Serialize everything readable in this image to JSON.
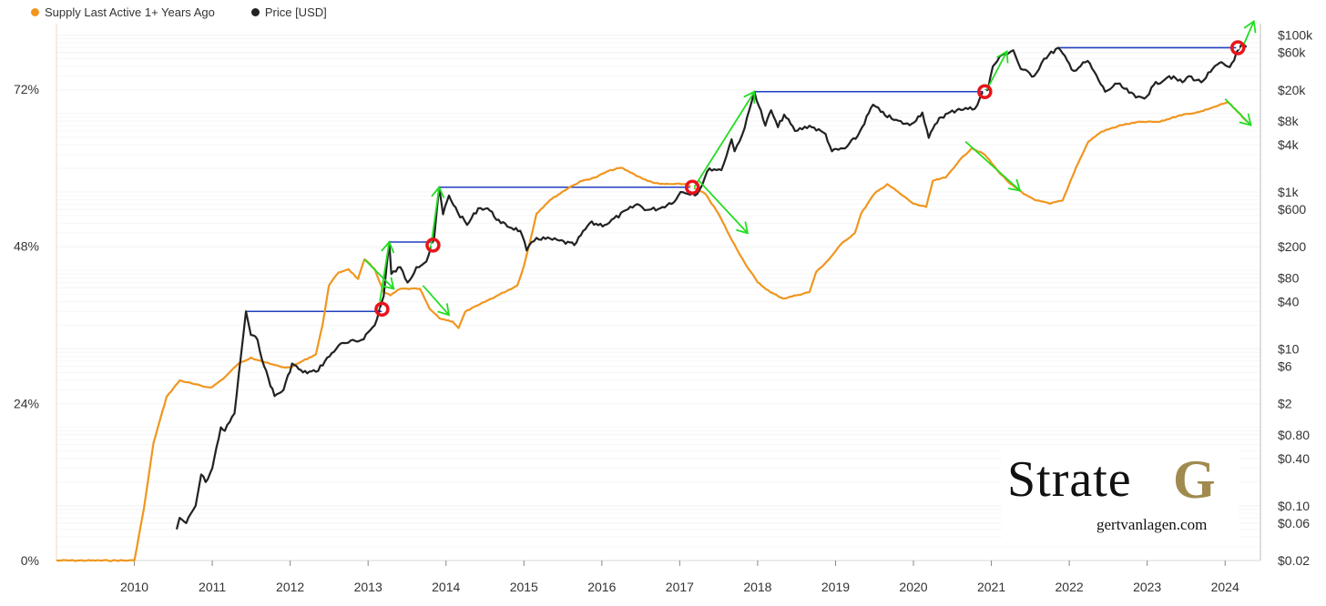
{
  "legend": {
    "supply_label": "Supply Last Active 1+ Years Ago",
    "price_label": "Price [USD]"
  },
  "watermark": {
    "brand_text": "Strate",
    "brand_mark": "G",
    "url": "gertvanlagen.com"
  },
  "colors": {
    "supply": "#f0961f",
    "price": "#222222",
    "ath_line": "#1f3fbf",
    "arrow": "#22dd22",
    "marker": "#e8141b",
    "grid": "#eeeeee",
    "axis_text": "#333333"
  },
  "chart_data": {
    "type": "line",
    "x_axis": {
      "type": "time",
      "range": [
        "2009-01-01",
        "2024-06-15"
      ],
      "tick_labels": [
        "2010",
        "2011",
        "2012",
        "2013",
        "2014",
        "2015",
        "2016",
        "2017",
        "2018",
        "2019",
        "2020",
        "2021",
        "2022",
        "2023",
        "2024"
      ]
    },
    "y_left": {
      "label": "",
      "range": [
        0,
        82
      ],
      "unit": "%",
      "tick_values": [
        0,
        24,
        48,
        72
      ],
      "tick_labels": [
        "0%",
        "24%",
        "48%",
        "72%"
      ]
    },
    "y_right": {
      "label": "",
      "scale": "log",
      "range": [
        0.02,
        140000
      ],
      "tick_values": [
        100000,
        60000,
        20000,
        8000,
        4000,
        1000,
        600,
        200,
        80,
        40,
        10,
        6,
        2,
        0.8,
        0.4,
        0.1,
        0.06,
        0.02
      ],
      "tick_labels": [
        "$100k",
        "$60k",
        "$20k",
        "$8k",
        "$4k",
        "$1k",
        "$600",
        "$200",
        "$80",
        "$40",
        "$10",
        "$6",
        "$2",
        "$0.80",
        "$0.40",
        "$0.10",
        "$0.06",
        "$0.02"
      ]
    },
    "grid": true,
    "legend_position": "top-left",
    "series": [
      {
        "name": "Supply Last Active 1+ Years Ago",
        "axis": "left",
        "points": [
          [
            "2009-01-01",
            0
          ],
          [
            "2010-01-01",
            0
          ],
          [
            "2010-02-15",
            8
          ],
          [
            "2010-04-01",
            18
          ],
          [
            "2010-06-01",
            25
          ],
          [
            "2010-08-01",
            27.5
          ],
          [
            "2010-10-01",
            27
          ],
          [
            "2010-12-01",
            26.5
          ],
          [
            "2011-01-01",
            26.5
          ],
          [
            "2011-03-01",
            28
          ],
          [
            "2011-05-01",
            30
          ],
          [
            "2011-07-01",
            31
          ],
          [
            "2011-08-15",
            30.5
          ],
          [
            "2011-10-01",
            30
          ],
          [
            "2011-12-01",
            29.5
          ],
          [
            "2012-01-01",
            29.5
          ],
          [
            "2012-03-01",
            30.5
          ],
          [
            "2012-05-01",
            31.5
          ],
          [
            "2012-06-01",
            36
          ],
          [
            "2012-07-01",
            42
          ],
          [
            "2012-08-15",
            44
          ],
          [
            "2012-10-01",
            44.5
          ],
          [
            "2012-11-15",
            43
          ],
          [
            "2012-12-15",
            46
          ],
          [
            "2013-02-01",
            44.5
          ],
          [
            "2013-03-15",
            41
          ],
          [
            "2013-04-15",
            40.5
          ],
          [
            "2013-06-01",
            41.5
          ],
          [
            "2013-09-01",
            41.5
          ],
          [
            "2013-10-15",
            38.5
          ],
          [
            "2013-12-01",
            37
          ],
          [
            "2014-02-01",
            36.5
          ],
          [
            "2014-03-01",
            35.5
          ],
          [
            "2014-04-01",
            38
          ],
          [
            "2014-06-01",
            39
          ],
          [
            "2014-09-01",
            40.5
          ],
          [
            "2014-12-01",
            42
          ],
          [
            "2015-01-01",
            45
          ],
          [
            "2015-02-01",
            49
          ],
          [
            "2015-03-01",
            53
          ],
          [
            "2015-05-01",
            55
          ],
          [
            "2015-08-01",
            57
          ],
          [
            "2015-10-01",
            58
          ],
          [
            "2015-12-01",
            58.5
          ],
          [
            "2016-02-01",
            59.5
          ],
          [
            "2016-04-01",
            60
          ],
          [
            "2016-06-01",
            59
          ],
          [
            "2016-08-01",
            58
          ],
          [
            "2016-10-01",
            57.5
          ],
          [
            "2016-12-01",
            57.5
          ],
          [
            "2017-02-01",
            57.5
          ],
          [
            "2017-05-01",
            56
          ],
          [
            "2017-07-01",
            53
          ],
          [
            "2017-09-01",
            49
          ],
          [
            "2017-11-01",
            45.5
          ],
          [
            "2018-01-01",
            42.5
          ],
          [
            "2018-03-01",
            41
          ],
          [
            "2018-05-01",
            40
          ],
          [
            "2018-07-01",
            40.5
          ],
          [
            "2018-09-01",
            41
          ],
          [
            "2018-10-01",
            44
          ],
          [
            "2018-12-01",
            46
          ],
          [
            "2019-02-01",
            48.5
          ],
          [
            "2019-04-01",
            50
          ],
          [
            "2019-05-01",
            53
          ],
          [
            "2019-07-01",
            56
          ],
          [
            "2019-09-01",
            57.5
          ],
          [
            "2019-11-01",
            56
          ],
          [
            "2020-01-01",
            54.5
          ],
          [
            "2020-03-01",
            54
          ],
          [
            "2020-04-01",
            58
          ],
          [
            "2020-06-01",
            58.5
          ],
          [
            "2020-08-01",
            61
          ],
          [
            "2020-10-01",
            63
          ],
          [
            "2020-12-01",
            62
          ],
          [
            "2021-02-01",
            59.5
          ],
          [
            "2021-04-01",
            57.5
          ],
          [
            "2021-06-01",
            56
          ],
          [
            "2021-08-01",
            55
          ],
          [
            "2021-10-01",
            54.5
          ],
          [
            "2021-12-01",
            55
          ],
          [
            "2022-02-01",
            60
          ],
          [
            "2022-04-01",
            64
          ],
          [
            "2022-06-01",
            65.5
          ],
          [
            "2022-09-01",
            66.5
          ],
          [
            "2022-12-01",
            67
          ],
          [
            "2023-03-01",
            67
          ],
          [
            "2023-06-01",
            68
          ],
          [
            "2023-09-01",
            68.5
          ],
          [
            "2023-12-01",
            69.5
          ],
          [
            "2024-01-15",
            70
          ],
          [
            "2024-03-01",
            68.5
          ],
          [
            "2024-04-15",
            67
          ]
        ]
      },
      {
        "name": "Price [USD]",
        "axis": "right",
        "points": [
          [
            "2010-07-18",
            0.05
          ],
          [
            "2010-08-01",
            0.07
          ],
          [
            "2010-09-01",
            0.06
          ],
          [
            "2010-10-15",
            0.1
          ],
          [
            "2010-11-10",
            0.25
          ],
          [
            "2010-12-01",
            0.2
          ],
          [
            "2011-01-01",
            0.3
          ],
          [
            "2011-02-10",
            1.0
          ],
          [
            "2011-03-01",
            0.9
          ],
          [
            "2011-04-15",
            1.5
          ],
          [
            "2011-05-15",
            8
          ],
          [
            "2011-06-08",
            30
          ],
          [
            "2011-07-01",
            15
          ],
          [
            "2011-08-01",
            13
          ],
          [
            "2011-09-01",
            6
          ],
          [
            "2011-10-20",
            2.5
          ],
          [
            "2011-12-01",
            3
          ],
          [
            "2012-01-10",
            6.5
          ],
          [
            "2012-03-01",
            5
          ],
          [
            "2012-05-01",
            5.1
          ],
          [
            "2012-08-15",
            11
          ],
          [
            "2012-10-01",
            12
          ],
          [
            "2012-12-01",
            13
          ],
          [
            "2013-02-01",
            20
          ],
          [
            "2013-03-15",
            47
          ],
          [
            "2013-04-10",
            230
          ],
          [
            "2013-04-20",
            90
          ],
          [
            "2013-06-01",
            110
          ],
          [
            "2013-07-05",
            70
          ],
          [
            "2013-08-15",
            110
          ],
          [
            "2013-10-01",
            130
          ],
          [
            "2013-11-06",
            250
          ],
          [
            "2013-11-30",
            1150
          ],
          [
            "2013-12-18",
            520
          ],
          [
            "2014-01-15",
            900
          ],
          [
            "2014-02-25",
            550
          ],
          [
            "2014-04-10",
            380
          ],
          [
            "2014-06-01",
            620
          ],
          [
            "2014-07-15",
            620
          ],
          [
            "2014-09-15",
            400
          ],
          [
            "2014-12-15",
            320
          ],
          [
            "2015-01-14",
            180
          ],
          [
            "2015-03-01",
            260
          ],
          [
            "2015-06-15",
            240
          ],
          [
            "2015-08-25",
            210
          ],
          [
            "2015-11-05",
            400
          ],
          [
            "2016-01-15",
            380
          ],
          [
            "2016-06-15",
            700
          ],
          [
            "2016-08-01",
            590
          ],
          [
            "2016-10-01",
            620
          ],
          [
            "2016-12-15",
            800
          ],
          [
            "2017-01-05",
            1000
          ],
          [
            "2017-03-25",
            950
          ],
          [
            "2017-05-20",
            2000
          ],
          [
            "2017-07-15",
            1900
          ],
          [
            "2017-09-01",
            4700
          ],
          [
            "2017-09-15",
            3300
          ],
          [
            "2017-11-01",
            6500
          ],
          [
            "2017-12-17",
            19000
          ],
          [
            "2018-02-06",
            7000
          ],
          [
            "2018-03-05",
            11000
          ],
          [
            "2018-04-06",
            6700
          ],
          [
            "2018-05-05",
            9700
          ],
          [
            "2018-06-25",
            6000
          ],
          [
            "2018-09-01",
            7000
          ],
          [
            "2018-11-15",
            5500
          ],
          [
            "2018-12-15",
            3300
          ],
          [
            "2019-02-15",
            3600
          ],
          [
            "2019-04-15",
            5200
          ],
          [
            "2019-06-26",
            13000
          ],
          [
            "2019-08-01",
            10500
          ],
          [
            "2019-10-01",
            8300
          ],
          [
            "2019-12-15",
            7100
          ],
          [
            "2020-02-12",
            10300
          ],
          [
            "2020-03-13",
            4900
          ],
          [
            "2020-05-01",
            8800
          ],
          [
            "2020-08-01",
            11500
          ],
          [
            "2020-10-15",
            11500
          ],
          [
            "2020-11-20",
            18600
          ],
          [
            "2020-12-15",
            20000
          ],
          [
            "2021-01-08",
            40000
          ],
          [
            "2021-02-20",
            56000
          ],
          [
            "2021-04-14",
            64000
          ],
          [
            "2021-05-19",
            37000
          ],
          [
            "2021-07-20",
            30000
          ],
          [
            "2021-09-05",
            50000
          ],
          [
            "2021-11-10",
            69000
          ],
          [
            "2022-01-22",
            35000
          ],
          [
            "2022-03-28",
            47000
          ],
          [
            "2022-06-18",
            19000
          ],
          [
            "2022-08-15",
            24000
          ],
          [
            "2022-11-09",
            16000
          ],
          [
            "2022-12-30",
            16500
          ],
          [
            "2023-01-31",
            23000
          ],
          [
            "2023-04-14",
            30000
          ],
          [
            "2023-06-15",
            25000
          ],
          [
            "2023-07-15",
            30000
          ],
          [
            "2023-09-11",
            25000
          ],
          [
            "2023-10-25",
            34000
          ],
          [
            "2023-12-05",
            44000
          ],
          [
            "2024-01-23",
            39000
          ],
          [
            "2024-03-14",
            73000
          ],
          [
            "2024-04-10",
            70000
          ]
        ]
      }
    ],
    "annotations": {
      "ath_levels": [
        {
          "from": "2011-06-08",
          "to": "2013-03-07",
          "price": 30
        },
        {
          "from": "2013-04-10",
          "to": "2013-11-01",
          "price": 230
        },
        {
          "from": "2013-11-30",
          "to": "2017-03-01",
          "price": 1150
        },
        {
          "from": "2017-12-17",
          "to": "2020-12-01",
          "price": 19000
        },
        {
          "from": "2021-11-10",
          "to": "2024-03-01",
          "price": 69000
        }
      ],
      "breakout_markers": [
        {
          "date": "2013-03-07",
          "price": 32
        },
        {
          "date": "2013-11-01",
          "price": 210
        },
        {
          "date": "2017-03-01",
          "price": 1150
        },
        {
          "date": "2020-12-01",
          "price": 19000
        },
        {
          "date": "2024-03-01",
          "price": 69000
        }
      ],
      "price_arrows": [
        {
          "from": [
            "2013-02-25",
            40
          ],
          "to": [
            "2013-04-10",
            230
          ]
        },
        {
          "from": [
            "2013-10-20",
            180
          ],
          "to": [
            "2013-11-30",
            1150
          ]
        },
        {
          "from": [
            "2017-03-05",
            1100
          ],
          "to": [
            "2017-12-17",
            19000
          ]
        },
        {
          "from": [
            "2020-12-10",
            20000
          ],
          "to": [
            "2021-03-15",
            62000
          ]
        },
        {
          "from": [
            "2024-03-25",
            72000
          ],
          "to": [
            "2024-05-15",
            150000
          ]
        }
      ],
      "supply_arrows": [
        {
          "from": [
            "2012-12-15",
            46
          ],
          "to": [
            "2013-05-01",
            41.5
          ]
        },
        {
          "from": [
            "2013-09-15",
            42
          ],
          "to": [
            "2014-01-15",
            37.5
          ]
        },
        {
          "from": [
            "2017-04-01",
            58
          ],
          "to": [
            "2017-11-15",
            50
          ]
        },
        {
          "from": [
            "2020-09-01",
            64
          ],
          "to": [
            "2021-05-15",
            56.5
          ]
        },
        {
          "from": [
            "2024-01-01",
            70.5
          ],
          "to": [
            "2024-05-01",
            66.5
          ]
        }
      ]
    }
  }
}
